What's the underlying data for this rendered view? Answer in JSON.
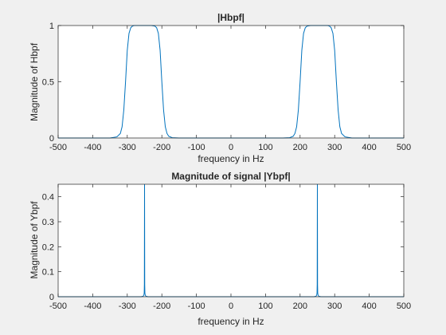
{
  "figure": {
    "background": "#f0f0f0",
    "axes_background": "#ffffff",
    "line_color": "#0072bd",
    "axis_color": "#262626"
  },
  "chart_data": [
    {
      "type": "line",
      "title": "|Hbpf|",
      "xlabel": "frequency in Hz",
      "ylabel": "Magnitude of Hbpf",
      "xlim": [
        -500,
        500
      ],
      "ylim": [
        0,
        1
      ],
      "xticks": [
        -500,
        -400,
        -300,
        -200,
        -100,
        0,
        100,
        200,
        300,
        400,
        500
      ],
      "yticks": [
        0,
        0.5,
        1
      ],
      "ytick_labels": [
        "0",
        "0.5",
        "1"
      ],
      "grid": false,
      "series": [
        {
          "x": [
            -500,
            -350,
            -330,
            -320,
            -315,
            -310,
            -305,
            -300,
            -295,
            -290,
            -285,
            -280,
            -260,
            -230,
            -220,
            -215,
            -210,
            -205,
            -200,
            -195,
            -190,
            -185,
            -180,
            -170,
            -150,
            0,
            150,
            170,
            180,
            185,
            190,
            195,
            200,
            205,
            210,
            215,
            220,
            230,
            260,
            280,
            285,
            290,
            295,
            300,
            305,
            310,
            315,
            320,
            330,
            350,
            500
          ],
          "y": [
            0,
            0,
            0.01,
            0.04,
            0.1,
            0.25,
            0.5,
            0.78,
            0.93,
            0.98,
            0.995,
            1,
            1,
            1,
            0.995,
            0.98,
            0.93,
            0.78,
            0.5,
            0.25,
            0.1,
            0.04,
            0.015,
            0.003,
            0,
            0,
            0,
            0.003,
            0.015,
            0.04,
            0.1,
            0.25,
            0.5,
            0.78,
            0.93,
            0.98,
            0.995,
            1,
            1,
            1,
            0.995,
            0.98,
            0.93,
            0.78,
            0.5,
            0.25,
            0.1,
            0.04,
            0.01,
            0,
            0
          ]
        }
      ]
    },
    {
      "type": "line",
      "title": "Magnitude of signal |Ybpf|",
      "xlabel": "frequency in Hz",
      "ylabel": "Magnitude of Ybpf",
      "xlim": [
        -500,
        500
      ],
      "ylim": [
        0,
        0.45
      ],
      "xticks": [
        -500,
        -400,
        -300,
        -200,
        -100,
        0,
        100,
        200,
        300,
        400,
        500
      ],
      "yticks": [
        0,
        0.1,
        0.2,
        0.3,
        0.4
      ],
      "ytick_labels": [
        "0",
        "0.1",
        "0.2",
        "0.3",
        "0.4"
      ],
      "grid": false,
      "series": [
        {
          "x": [
            -500,
            -260,
            -254,
            -252,
            -251,
            -250.5,
            -250,
            -249.5,
            -249,
            -248,
            -246,
            -240,
            240,
            246,
            248,
            249,
            249.5,
            250,
            250.5,
            251,
            252,
            254,
            260,
            500
          ],
          "y": [
            0,
            0,
            0.002,
            0.006,
            0.015,
            0.05,
            0.45,
            0.05,
            0.015,
            0.006,
            0.002,
            0,
            0,
            0.002,
            0.006,
            0.015,
            0.05,
            0.45,
            0.05,
            0.015,
            0.006,
            0.002,
            0,
            0
          ]
        }
      ]
    }
  ]
}
